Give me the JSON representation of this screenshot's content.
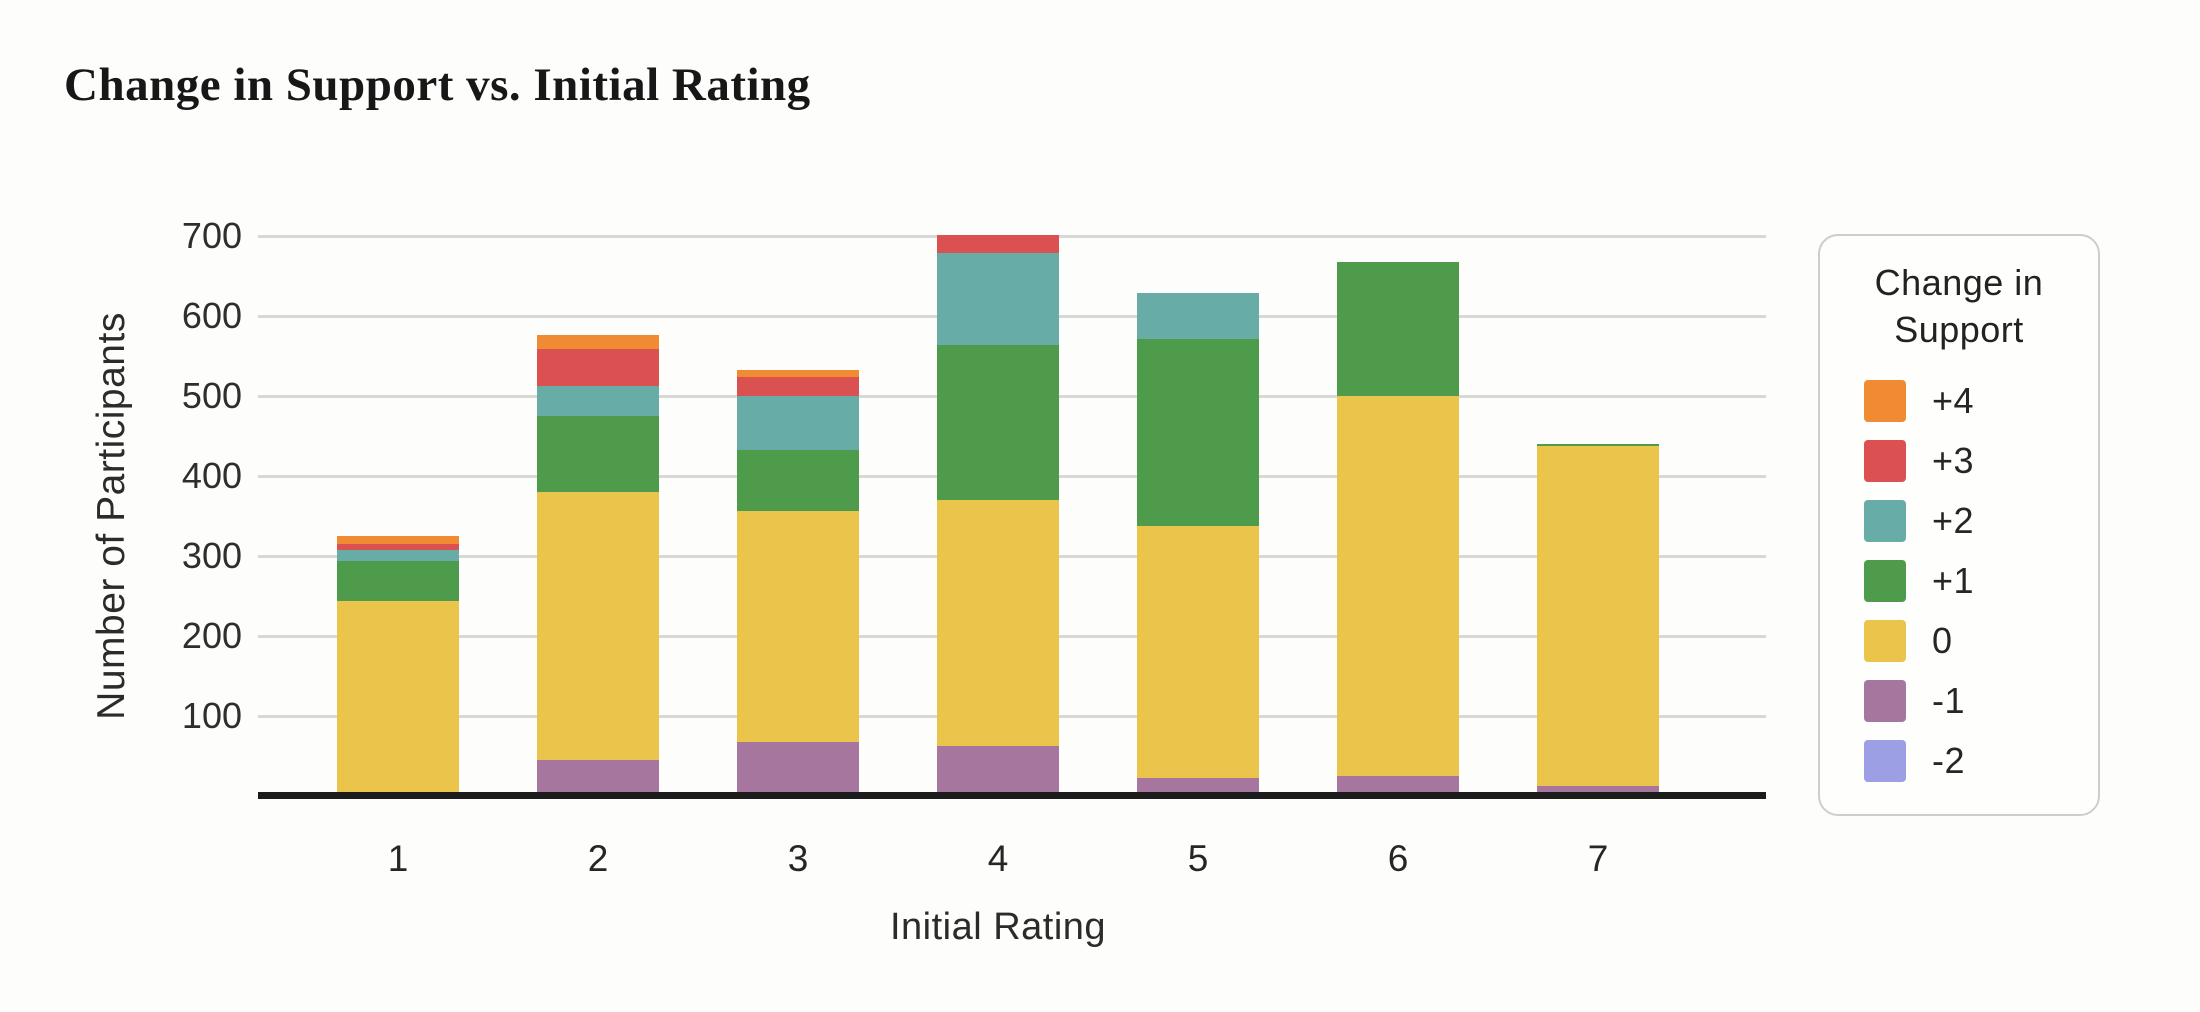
{
  "chart_data": {
    "type": "bar",
    "stacked": true,
    "title": "Change in Support vs. Initial Rating",
    "xlabel": "Initial Rating",
    "ylabel": "Number of Participants",
    "categories": [
      "1",
      "2",
      "3",
      "4",
      "5",
      "6",
      "7"
    ],
    "ylim": [
      0,
      700
    ],
    "yticks": [
      100,
      200,
      300,
      400,
      500,
      600,
      700
    ],
    "grid": "horizontal",
    "legend_position": "right",
    "legend_title": "Change in Support",
    "series": [
      {
        "name": "+4",
        "color": "#F08A33",
        "values": [
          10,
          17,
          9,
          0,
          0,
          0,
          0
        ]
      },
      {
        "name": "+3",
        "color": "#DB5151",
        "values": [
          7,
          46,
          24,
          22,
          0,
          0,
          0
        ]
      },
      {
        "name": "+2",
        "color": "#68ACA8",
        "values": [
          14,
          38,
          67,
          115,
          58,
          0,
          0
        ]
      },
      {
        "name": "+1",
        "color": "#4E9B4C",
        "values": [
          50,
          95,
          77,
          194,
          234,
          167,
          3
        ]
      },
      {
        "name": "0",
        "color": "#EAC44B",
        "values": [
          244,
          335,
          288,
          308,
          315,
          475,
          425
        ]
      },
      {
        "name": "-1",
        "color": "#A7769E",
        "values": [
          0,
          45,
          68,
          62,
          22,
          25,
          12
        ]
      },
      {
        "name": "-2",
        "color": "#9C9FE3",
        "values": [
          0,
          0,
          0,
          0,
          0,
          0,
          0
        ]
      }
    ],
    "colors": {
      "grid": "#D8D8D5",
      "axis": "#1C1C1C",
      "background": "#FDFDFB"
    }
  }
}
